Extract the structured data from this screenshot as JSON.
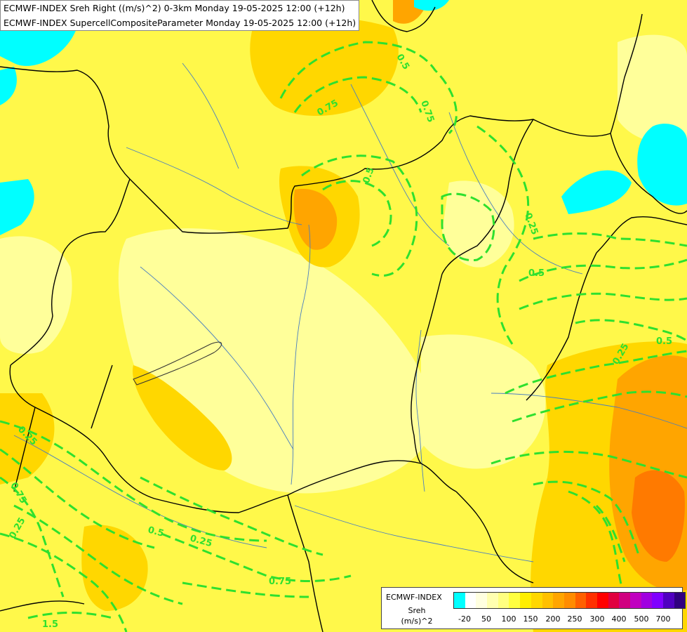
{
  "header": {
    "line1": "ECMWF-INDEX Sreh Right ((m/s)^2) 0-3km Monday 19-05-2025 12:00 (+12h)",
    "line2": "ECMWF-INDEX SupercellCompositeParameter Monday 19-05-2025 12:00 (+12h)"
  },
  "legend": {
    "title": "ECMWF-INDEX",
    "variable": "Sreh",
    "unit": "(m/s)^2",
    "colors": [
      "#00ffff",
      "#ffffff",
      "#ffffe0",
      "#ffffb0",
      "#ffff80",
      "#ffff40",
      "#ffee00",
      "#ffd700",
      "#ffc000",
      "#ffa500",
      "#ff8c00",
      "#ff6000",
      "#ff3000",
      "#ff0000",
      "#e00040",
      "#d00080",
      "#c000c0",
      "#a000e0",
      "#8000ff",
      "#5000c0",
      "#300080"
    ],
    "ticks": [
      "-20",
      "50",
      "100",
      "150",
      "200",
      "250",
      "300",
      "400",
      "500",
      "700"
    ]
  },
  "contour_labels": [
    "0.25",
    "0.5",
    "0.75",
    "1.5"
  ],
  "colors": {
    "low_sreh": "#00ffff",
    "pale_yellow": "#ffff9a",
    "yellow": "#fff84a",
    "gold": "#ffd700",
    "orange": "#ffa500",
    "dark_orange": "#ff7a00",
    "contour": "#2ee02e",
    "border": "#000000",
    "river": "#4a7fbf"
  }
}
